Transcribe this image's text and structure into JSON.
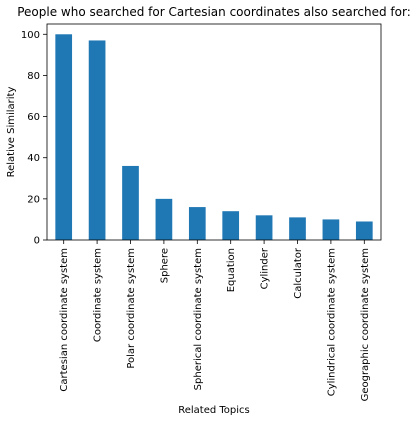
{
  "chart_data": {
    "type": "bar",
    "title": "People who searched for Cartesian coordinates also searched for:",
    "xlabel": "Related Topics",
    "ylabel": "Relative Similarity",
    "categories": [
      "Cartesian coordinate system",
      "Coordinate system",
      "Polar coordinate system",
      "Sphere",
      "Spherical coordinate system",
      "Equation",
      "Cylinder",
      "Calculator",
      "Cylindrical coordinate system",
      "Geographic coordinate system"
    ],
    "values": [
      100,
      97,
      36,
      20,
      16,
      14,
      12,
      11,
      10,
      9
    ],
    "ylim": [
      0,
      105
    ],
    "yticks": [
      0,
      20,
      40,
      60,
      80,
      100
    ],
    "bar_color": "#1f77b4",
    "grid": false,
    "legend": "none"
  }
}
